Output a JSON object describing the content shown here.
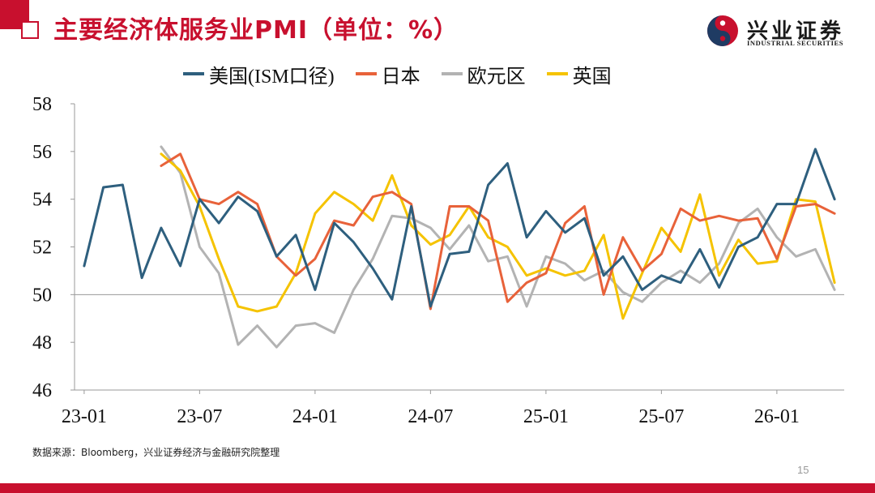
{
  "header": {
    "title": "主要经济体服务业PMI（单位：%）",
    "logo_name": "兴业证券",
    "logo_sub": "INDUSTRIAL SECURITIES",
    "logo_icon": "industrial-securities-logo"
  },
  "footer": {
    "source": "数据来源：Bloomberg，兴业证券经济与金融研究院整理",
    "page_number": "15"
  },
  "colors": {
    "brand_red": "#c8102e",
    "us": "#2e5f7e",
    "japan": "#e8623a",
    "eurozone": "#b3b3b3",
    "uk": "#f5c300"
  },
  "chart_data": {
    "type": "line",
    "title": "主要经济体服务业PMI（单位：%）",
    "xlabel": "",
    "ylabel": "",
    "ylim": [
      46,
      58
    ],
    "yticks": [
      46,
      48,
      50,
      52,
      54,
      56,
      58
    ],
    "x_start": "23-01",
    "x_tick_labels": [
      "23-01",
      "23-07",
      "24-01",
      "24-07",
      "25-01",
      "25-07",
      "26-01"
    ],
    "grid": false,
    "reference_line": 50,
    "legend_position": "top",
    "series": [
      {
        "name": "美国(ISM口径)",
        "color": "#2e5f7e",
        "values": [
          51.2,
          54.5,
          54.6,
          50.7,
          52.8,
          51.2,
          54.0,
          53.0,
          54.1,
          53.5,
          51.6,
          52.5,
          50.2,
          53.0,
          52.2,
          51.1,
          49.8,
          53.7,
          49.5,
          51.7,
          51.8,
          54.6,
          55.5,
          52.4,
          53.5,
          52.6,
          53.2,
          50.8,
          51.6,
          50.2,
          50.8,
          50.5,
          51.9,
          50.3,
          52.0,
          52.4,
          53.8,
          53.8,
          56.1,
          54.0
        ]
      },
      {
        "name": "日本",
        "color": "#e8623a",
        "values": [
          null,
          null,
          null,
          null,
          55.4,
          55.9,
          54.0,
          53.8,
          54.3,
          53.8,
          51.6,
          50.8,
          51.5,
          53.1,
          52.9,
          54.1,
          54.3,
          53.8,
          49.4,
          53.7,
          53.7,
          53.1,
          49.7,
          50.5,
          50.9,
          53.0,
          53.7,
          50.0,
          52.4,
          51.0,
          51.7,
          53.6,
          53.1,
          53.3,
          53.1,
          53.2,
          51.5,
          53.7,
          53.8,
          53.4
        ]
      },
      {
        "name": "欧元区",
        "color": "#b3b3b3",
        "values": [
          null,
          null,
          null,
          null,
          56.2,
          55.1,
          52.0,
          50.9,
          47.9,
          48.7,
          47.8,
          48.7,
          48.8,
          48.4,
          50.2,
          51.5,
          53.3,
          53.2,
          52.8,
          51.9,
          52.9,
          51.4,
          51.6,
          49.5,
          51.6,
          51.3,
          50.6,
          51.0,
          50.1,
          49.7,
          50.5,
          51.0,
          50.5,
          51.3,
          53.0,
          53.6,
          52.4,
          51.6,
          51.9,
          50.2
        ]
      },
      {
        "name": "英国",
        "color": "#f5c300",
        "values": [
          null,
          null,
          null,
          null,
          55.9,
          55.2,
          53.7,
          51.5,
          49.5,
          49.3,
          49.5,
          50.9,
          53.4,
          54.3,
          53.8,
          53.1,
          55.0,
          52.9,
          52.1,
          52.5,
          53.7,
          52.4,
          52.0,
          50.8,
          51.1,
          50.8,
          51.0,
          52.5,
          49.0,
          50.9,
          52.8,
          51.8,
          54.2,
          50.8,
          52.3,
          51.3,
          51.4,
          54.0,
          53.9,
          50.5
        ]
      }
    ]
  }
}
